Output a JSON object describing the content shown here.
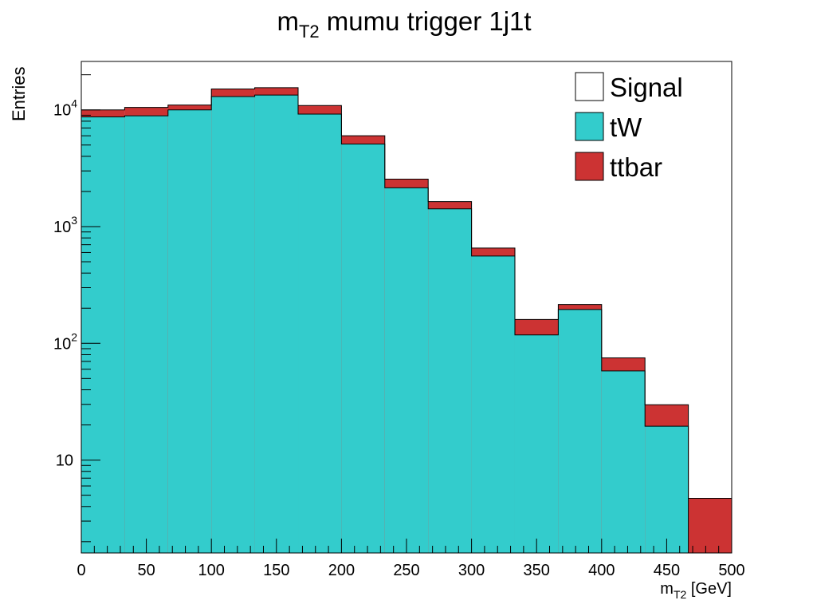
{
  "chart_data": {
    "type": "bar",
    "stacked": true,
    "title": {
      "main": "m",
      "sub": "T2",
      "rest": " mumu trigger 1j1t"
    },
    "xlabel": {
      "main": "m",
      "sub": "T2",
      "rest": " [GeV]"
    },
    "ylabel": "Entries",
    "y_scale": "log",
    "xlim": [
      0,
      500
    ],
    "ylim": [
      1.6,
      26000
    ],
    "x_ticks": [
      0,
      50,
      100,
      150,
      200,
      250,
      300,
      350,
      400,
      450,
      500
    ],
    "x_tick_labels": [
      "0",
      "50",
      "100",
      "150",
      "200",
      "250",
      "300",
      "350",
      "400",
      "450",
      "500"
    ],
    "y_ticks": [
      {
        "value": 10,
        "base": "10",
        "exp": ""
      },
      {
        "value": 100,
        "base": "10",
        "exp": "2"
      },
      {
        "value": 1000,
        "base": "10",
        "exp": "3"
      },
      {
        "value": 10000,
        "base": "10",
        "exp": "4"
      }
    ],
    "bin_edges": [
      0,
      33.33,
      66.67,
      100,
      133.33,
      166.67,
      200,
      233.33,
      266.67,
      300,
      333.33,
      366.67,
      400,
      433.33,
      466.67,
      500
    ],
    "series": [
      {
        "name": "tW",
        "color": "#33cccc",
        "values": [
          8700,
          8900,
          10000,
          13000,
          13400,
          9200,
          5100,
          2150,
          1420,
          560,
          118,
          195,
          58,
          19.5,
          0
        ]
      },
      {
        "name": "ttbar",
        "color": "#cc3333",
        "values": [
          1300,
          1600,
          1000,
          2100,
          2100,
          1700,
          900,
          400,
          220,
          95,
          42,
          20,
          17,
          10.3,
          4.7
        ]
      },
      {
        "name": "Signal",
        "color": "#ffffff",
        "values": [
          0,
          0,
          0,
          0,
          0,
          0,
          0,
          0,
          0,
          0,
          0,
          0,
          0,
          0,
          0
        ]
      }
    ],
    "legend": {
      "placement": "top-right",
      "entries": [
        {
          "label": "Signal",
          "color": "#ffffff"
        },
        {
          "label": "tW",
          "color": "#33cccc"
        },
        {
          "label": "ttbar",
          "color": "#cc3333"
        }
      ]
    }
  }
}
